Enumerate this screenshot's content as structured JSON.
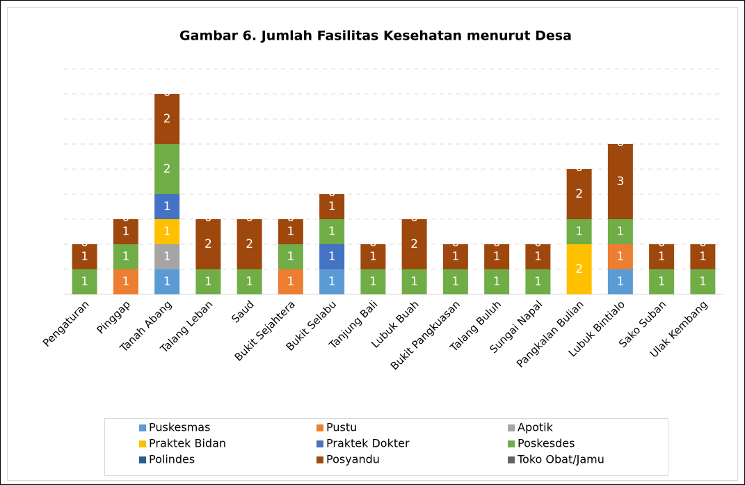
{
  "chart_data": {
    "type": "stacked_bar",
    "title": "Gambar 6. Jumlah Fasilitas Kesehatan menurut Desa",
    "categories": [
      "Pengaturan",
      "Pinggap",
      "Tanah Abang",
      "Talang Leban",
      "Saud",
      "Bukit Sejahtera",
      "Bukit Selabu",
      "Tanjung Bali",
      "Lubuk Buah",
      "Bukit Pangkuasan",
      "Talang Buluh",
      "Sungai Napal",
      "Pangkalan Bulian",
      "Lubuk Bintialo",
      "Sako Suban",
      "Ulak Kembang"
    ],
    "series": [
      {
        "name": "Puskesmas",
        "color": "#5b9bd5",
        "values": [
          0,
          0,
          1,
          0,
          0,
          0,
          1,
          0,
          0,
          0,
          0,
          0,
          0,
          1,
          0,
          0
        ]
      },
      {
        "name": "Pustu",
        "color": "#ed7d31",
        "values": [
          0,
          1,
          0,
          0,
          0,
          1,
          0,
          0,
          0,
          0,
          0,
          0,
          0,
          1,
          0,
          0
        ]
      },
      {
        "name": "Apotik",
        "color": "#a5a5a5",
        "values": [
          0,
          0,
          1,
          0,
          0,
          0,
          0,
          0,
          0,
          0,
          0,
          0,
          0,
          0,
          0,
          0
        ]
      },
      {
        "name": "Praktek Bidan",
        "color": "#ffc000",
        "values": [
          0,
          0,
          1,
          0,
          0,
          0,
          0,
          0,
          0,
          0,
          0,
          0,
          2,
          0,
          0,
          0
        ]
      },
      {
        "name": "Praktek Dokter",
        "color": "#4472c4",
        "values": [
          0,
          0,
          1,
          0,
          0,
          0,
          1,
          0,
          0,
          0,
          0,
          0,
          0,
          0,
          0,
          0
        ]
      },
      {
        "name": "Poskesdes",
        "color": "#70ad47",
        "values": [
          1,
          1,
          2,
          1,
          1,
          1,
          1,
          1,
          1,
          1,
          1,
          1,
          1,
          1,
          1,
          1
        ]
      },
      {
        "name": "Polindes",
        "color": "#255e91",
        "values": [
          0,
          0,
          0,
          0,
          0,
          0,
          0,
          0,
          0,
          0,
          0,
          0,
          0,
          0,
          0,
          0
        ]
      },
      {
        "name": "Posyandu",
        "color": "#9e480e",
        "values": [
          1,
          1,
          2,
          2,
          2,
          1,
          1,
          1,
          2,
          1,
          1,
          1,
          2,
          3,
          1,
          1
        ]
      },
      {
        "name": "Toko Obat/Jamu",
        "color": "#636363",
        "values": [
          0,
          0,
          0,
          0,
          0,
          0,
          0,
          0,
          0,
          0,
          0,
          0,
          0,
          0,
          0,
          0
        ]
      }
    ],
    "ylim": [
      0,
      9
    ],
    "yticks": [
      0,
      1,
      2,
      3,
      4,
      5,
      6,
      7,
      8,
      9
    ],
    "grid": true
  }
}
